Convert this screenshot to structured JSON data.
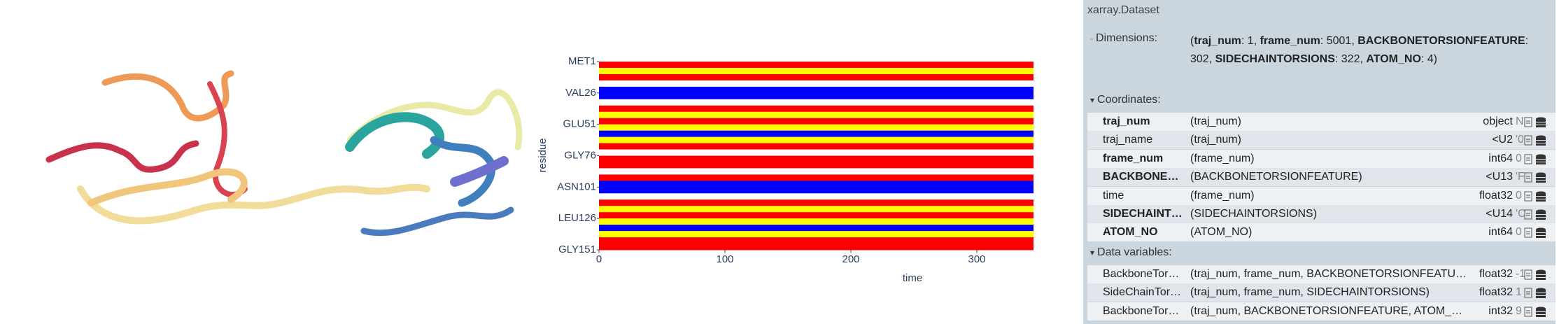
{
  "chart_data": {
    "type": "heatmap",
    "xlabel": "time",
    "ylabel": "residue",
    "xlim": [
      0,
      345
    ],
    "xticks": [
      0,
      100,
      200,
      300
    ],
    "ylim": [
      1,
      151
    ],
    "yticks": [
      {
        "value": 1,
        "label": "MET1"
      },
      {
        "value": 26,
        "label": "VAL26"
      },
      {
        "value": 51,
        "label": "GLU51"
      },
      {
        "value": 76,
        "label": "GLY76"
      },
      {
        "value": 101,
        "label": "ASN101"
      },
      {
        "value": 126,
        "label": "LEU126"
      },
      {
        "value": 151,
        "label": "GLY151"
      }
    ],
    "row_colors": [
      "#ff0000",
      "#ffff00",
      "#ff0000",
      "#ffffff",
      "#0000ff",
      "#0000ff",
      "#ffffff",
      "#ff0000",
      "#ffff00",
      "#ff0000",
      "#ffff00",
      "#0000ff",
      "#ffff00",
      "#ff0000",
      "#ffffff",
      "#ff0000",
      "#ff0000",
      "#ffffff",
      "#ff0000",
      "#0000ff",
      "#0000ff",
      "#ffffff",
      "#ff0000",
      "#ffff00",
      "#ff0000",
      "#ffff00",
      "#0000ff",
      "#ffff00",
      "#ff0000",
      "#ff0000"
    ]
  },
  "dataset": {
    "title": "xarray.Dataset",
    "dimensions_header": "Dimensions:",
    "dimensions": [
      {
        "text": "("
      },
      {
        "text": "traj_num",
        "bold": true
      },
      {
        "text": ": 1, "
      },
      {
        "text": "frame_num",
        "bold": true
      },
      {
        "text": ": 5001, "
      },
      {
        "text": "BACKBONETORSIONFEATURE",
        "bold": true
      },
      {
        "text": ": 302, "
      },
      {
        "text": "SIDECHAINTORSIONS",
        "bold": true
      },
      {
        "text": ": 322, "
      },
      {
        "text": "ATOM_NO",
        "bold": true
      },
      {
        "text": ": 4)"
      }
    ],
    "coordinates_header": "Coordinates:",
    "coordinates": [
      {
        "name": "traj_num",
        "bold": true,
        "dims": "(traj_num)",
        "dtype": "object",
        "preview": "N"
      },
      {
        "name": "traj_name",
        "bold": false,
        "dims": "(traj_num)",
        "dtype": "<U2",
        "preview": "'0"
      },
      {
        "name": "frame_num",
        "bold": true,
        "dims": "(frame_num)",
        "dtype": "int64",
        "preview": "0"
      },
      {
        "name": "BACKBONE…",
        "bold": true,
        "dims": "(BACKBONETORSIONFEATURE)",
        "dtype": "<U13",
        "preview": "'F"
      },
      {
        "name": "time",
        "bold": false,
        "dims": "(frame_num)",
        "dtype": "float32",
        "preview": "0"
      },
      {
        "name": "SIDECHAINT…",
        "bold": true,
        "dims": "(SIDECHAINTORSIONS)",
        "dtype": "<U14",
        "preview": "'C"
      },
      {
        "name": "ATOM_NO",
        "bold": true,
        "dims": "(ATOM_NO)",
        "dtype": "int64",
        "preview": "0"
      }
    ],
    "data_variables_header": "Data variables:",
    "data_variables": [
      {
        "name": "BackboneTor…",
        "bold": false,
        "dims": "(traj_num, frame_num, BACKBONETORSIONFEATU…",
        "dtype": "float32",
        "preview": "-1"
      },
      {
        "name": "SideChainTor…",
        "bold": false,
        "dims": "(traj_num, frame_num, SIDECHAINTORSIONS)",
        "dtype": "float32",
        "preview": "1"
      },
      {
        "name": "BackboneTor…",
        "bold": false,
        "dims": "(traj_num, BACKBONETORSIONFEATURE, ATOM_…",
        "dtype": "int32",
        "preview": "9"
      }
    ]
  }
}
